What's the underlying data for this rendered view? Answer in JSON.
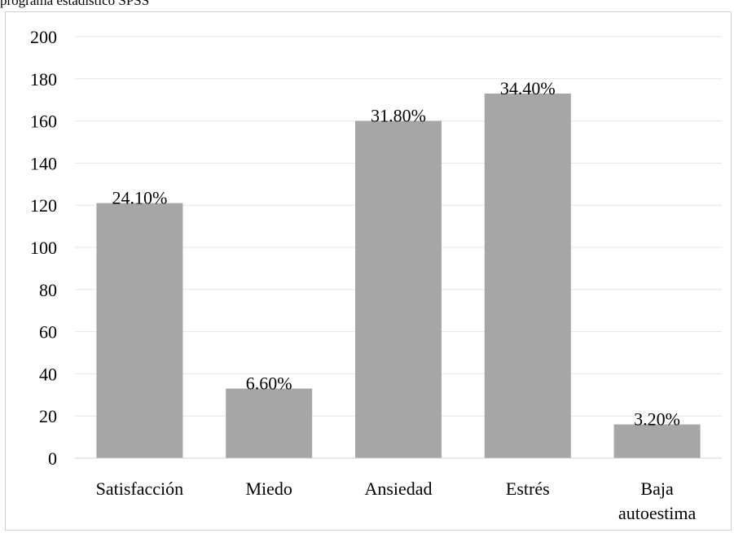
{
  "caption_text": "programa estadístico SPSS",
  "chart_data": {
    "type": "bar",
    "categories": [
      "Satisfacción",
      "Miedo",
      "Ansiedad",
      "Estrés",
      "Baja autoestima"
    ],
    "category_lines": [
      [
        "Satisfacción"
      ],
      [
        "Miedo"
      ],
      [
        "Ansiedad"
      ],
      [
        "Estrés"
      ],
      [
        "Baja",
        "autoestima"
      ]
    ],
    "values": [
      121,
      33,
      160,
      173,
      16
    ],
    "data_labels": [
      "24.10%",
      "6.60%",
      "31.80%",
      "34.40%",
      "3.20%"
    ],
    "title": "",
    "xlabel": "",
    "ylabel": "",
    "ylim": [
      0,
      200
    ],
    "yticks": [
      0,
      20,
      40,
      60,
      80,
      100,
      120,
      140,
      160,
      180,
      200
    ],
    "grid": true,
    "legend": "none",
    "bar_color": "#a6a6a6",
    "grid_color": "#e5e5e5",
    "axis_color": "#d0d0d0"
  }
}
